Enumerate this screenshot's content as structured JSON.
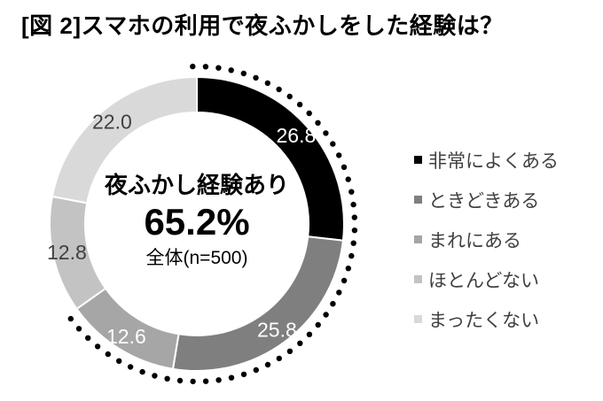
{
  "title": "[図 2]スマホの利用で夜ふかしをした経験は？",
  "chart_data": {
    "type": "pie",
    "subtype": "donut",
    "title": "[図 2]スマホの利用で夜ふかしをした経験は？",
    "categories": [
      "非常によくある",
      "ときどきある",
      "まれにある",
      "ほとんどない",
      "まったくない"
    ],
    "values": [
      26.8,
      25.8,
      12.6,
      12.8,
      22.0
    ],
    "labels": [
      "26.8",
      "25.8",
      "12.6",
      "12.8",
      "22.0"
    ],
    "colors": [
      "#000000",
      "#7f7f7f",
      "#a6a6a6",
      "#c3c3c3",
      "#d9d9d9"
    ],
    "label_colors": [
      "#ffffff",
      "#ffffff",
      "#ffffff",
      "#404040",
      "#404040"
    ],
    "start_angle_deg": 0,
    "direction": "clockwise",
    "legend_position": "right",
    "center": {
      "caption": "夜ふかし経験あり",
      "value": "65.2%",
      "note": "全体(n=500)"
    },
    "highlight_arc": {
      "covers_categories": [
        "非常によくある",
        "ときどきある",
        "まれにある"
      ],
      "total_percent": 65.2,
      "style": "dotted",
      "color": "#000000"
    }
  },
  "legend": {
    "items": [
      {
        "label": "非常によくある",
        "color": "#000000"
      },
      {
        "label": "ときどきある",
        "color": "#7f7f7f"
      },
      {
        "label": "まれにある",
        "color": "#a6a6a6"
      },
      {
        "label": "ほとんどない",
        "color": "#c3c3c3"
      },
      {
        "label": "まったくない",
        "color": "#d9d9d9"
      }
    ]
  }
}
